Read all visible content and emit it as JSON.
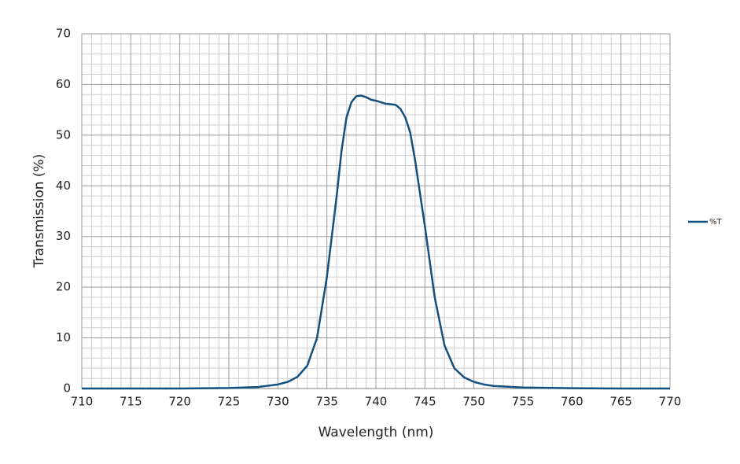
{
  "chart_data": {
    "type": "line",
    "x_label": "Wavelength (nm)",
    "y_label": "Transmission (%)",
    "x": [
      710,
      715,
      720,
      725,
      728,
      730,
      731,
      732,
      733,
      734,
      735,
      736,
      736.5,
      737,
      737.5,
      738,
      738.5,
      739,
      739.5,
      740,
      740.5,
      741,
      742,
      742.5,
      743,
      743.5,
      744,
      745,
      746,
      747,
      748,
      749,
      750,
      751,
      752,
      755,
      760,
      765,
      770
    ],
    "series": [
      {
        "name": "%T",
        "color": "#14507f",
        "values": [
          0,
          0,
          0,
          0.1,
          0.3,
          0.8,
          1.3,
          2.3,
          4.5,
          10,
          22,
          38,
          47,
          53.5,
          56.5,
          57.7,
          57.8,
          57.5,
          57.0,
          56.8,
          56.5,
          56.2,
          56.0,
          55.2,
          53.5,
          50.5,
          45,
          32,
          18,
          8.5,
          4,
          2.2,
          1.3,
          0.8,
          0.5,
          0.2,
          0.05,
          0,
          0
        ]
      }
    ],
    "xlim": [
      710,
      770
    ],
    "xticks": [
      710,
      715,
      720,
      725,
      730,
      735,
      740,
      745,
      750,
      755,
      760,
      765,
      770
    ],
    "ylim": [
      0,
      70
    ],
    "yticks": [
      0,
      10,
      20,
      30,
      40,
      50,
      60,
      70
    ],
    "grid": true,
    "legend": "right"
  }
}
